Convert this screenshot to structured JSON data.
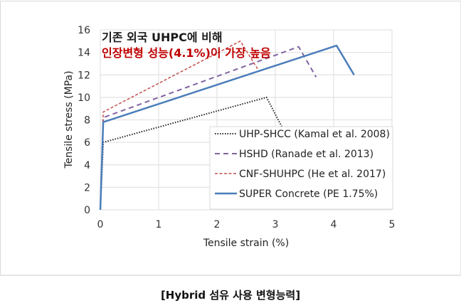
{
  "caption": "[Hybrid 섬유 사용 변형능력]",
  "annotation": {
    "line1": "기존 외국 UHPC에 비해",
    "line2": "인장변형 성능(4.1%)이 가장 높음",
    "line1_color": "#1a1a1a",
    "line2_color": "#c00000"
  },
  "chart_data": {
    "type": "line",
    "title": "",
    "xlabel": "Tensile strain (%)",
    "ylabel": "Tensile stress (MPa)",
    "xlim": [
      0,
      5
    ],
    "ylim": [
      0,
      16
    ],
    "x_ticks": [
      0,
      1,
      2,
      3,
      4,
      5
    ],
    "y_ticks": [
      0,
      2,
      4,
      6,
      8,
      10,
      12,
      14,
      16
    ],
    "grid": true,
    "legend_position": "lower right",
    "series": [
      {
        "name": "UHP-SHCC (Kamal et al. 2008)",
        "color": "#222222",
        "style": "dotted",
        "points": [
          [
            0,
            0
          ],
          [
            0.05,
            6.0
          ],
          [
            2.85,
            10.0
          ],
          [
            3.15,
            7.0
          ]
        ]
      },
      {
        "name": "HSHD (Ranade et al. 2013)",
        "color": "#8064a2",
        "style": "dashed",
        "points": [
          [
            0,
            0
          ],
          [
            0.05,
            8.2
          ],
          [
            3.4,
            14.5
          ],
          [
            3.7,
            11.8
          ]
        ]
      },
      {
        "name": "CNF-SHUHPC (He et al. 2017)",
        "color": "#c0504d",
        "style": "short-dashed",
        "points": [
          [
            0,
            0
          ],
          [
            0.05,
            8.7
          ],
          [
            2.4,
            15.0
          ],
          [
            2.7,
            12.5
          ]
        ]
      },
      {
        "name": "SUPER Concrete (PE 1.75%)",
        "color": "#4a7ebb",
        "style": "solid",
        "points": [
          [
            0,
            0
          ],
          [
            0.05,
            7.8
          ],
          [
            4.05,
            14.6
          ],
          [
            4.35,
            12.0
          ]
        ]
      }
    ]
  }
}
